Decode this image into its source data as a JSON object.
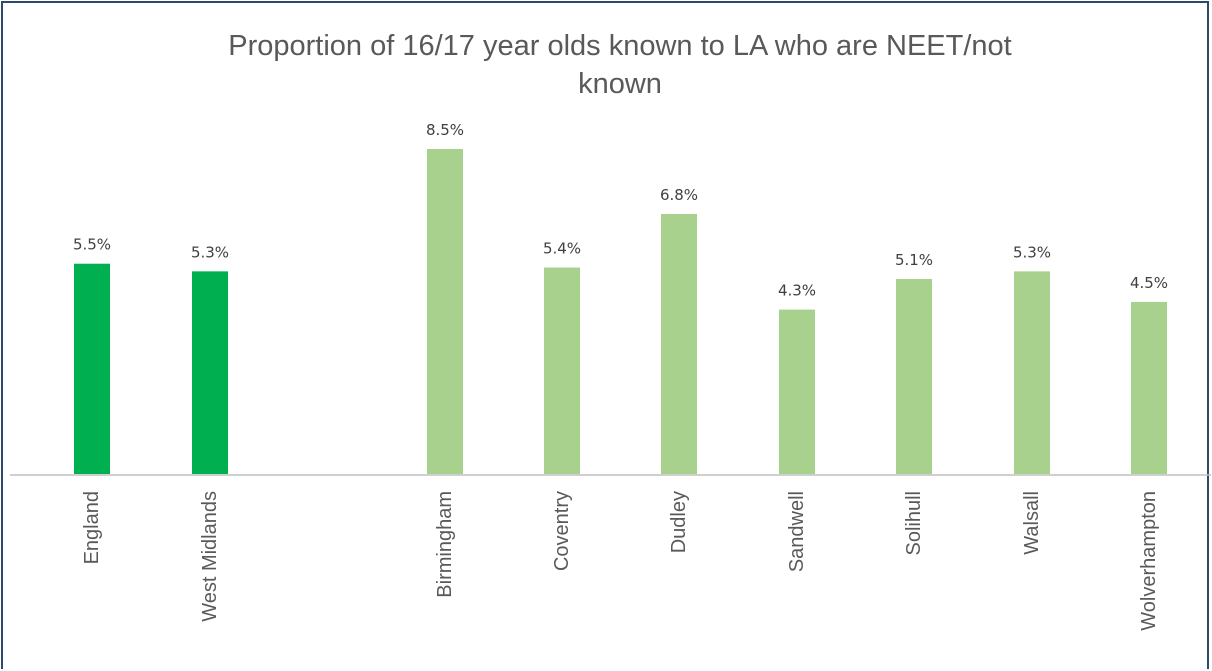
{
  "chart_data": {
    "type": "bar",
    "title": "Proportion of 16/17 year olds known to LA who are NEET/not known",
    "title_lines": [
      "Proportion of 16/17 year olds known to LA who are NEET/not",
      "known"
    ],
    "categories": [
      "England",
      "West Midlands",
      "Birmingham",
      "Coventry",
      "Dudley",
      "Sandwell",
      "Solihull",
      "Walsall",
      "Wolverhampton"
    ],
    "values": [
      5.5,
      5.3,
      8.5,
      5.4,
      6.8,
      4.3,
      5.1,
      5.3,
      4.5
    ],
    "data_labels": [
      "5.5%",
      "5.3%",
      "8.5%",
      "5.4%",
      "6.8%",
      "4.3%",
      "5.1%",
      "5.3%",
      "4.5%"
    ],
    "value_unit": "%",
    "groups": [
      {
        "categories": [
          "England",
          "West Midlands"
        ],
        "color": "#00b050"
      },
      {
        "categories": [
          "Birmingham",
          "Coventry",
          "Dudley",
          "Sandwell",
          "Solihull",
          "Walsall",
          "Wolverhampton"
        ],
        "color": "#a9d18e"
      }
    ],
    "xlabel": "",
    "ylabel": "",
    "ylim": [
      0,
      8.5
    ],
    "grid": false,
    "legend": "none",
    "category_label_rotation": "vertical"
  }
}
